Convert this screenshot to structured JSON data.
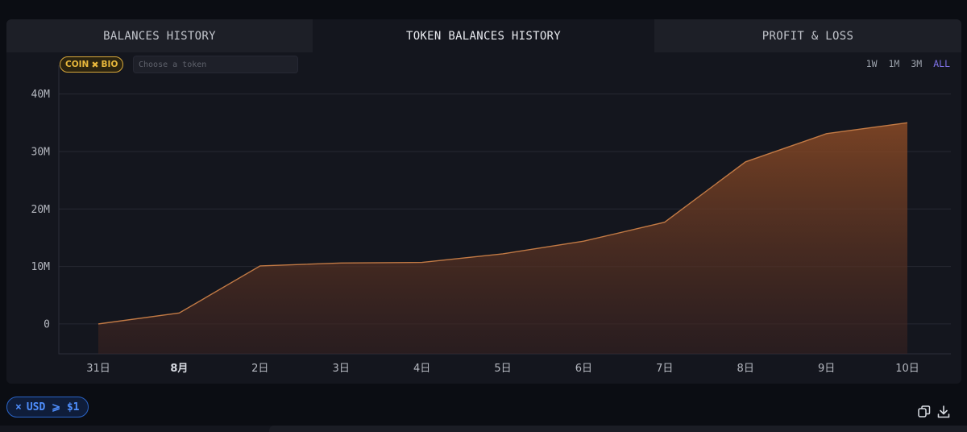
{
  "tabs": [
    {
      "label": "BALANCES HISTORY"
    },
    {
      "label": "TOKEN BALANCES HISTORY"
    },
    {
      "label": "PROFIT & LOSS"
    }
  ],
  "token_filter": {
    "chip_left": "COIN",
    "chip_right": "BIO",
    "chip_icon": "close-x-icon",
    "placeholder": "Choose a token"
  },
  "ranges": [
    "1W",
    "1M",
    "3M",
    "ALL"
  ],
  "active_range": "ALL",
  "chart_data": {
    "type": "area",
    "x": [
      "31日",
      "8月",
      "2日",
      "3日",
      "4日",
      "5日",
      "6日",
      "7日",
      "8日",
      "9日",
      "10日"
    ],
    "values": [
      0,
      1.9,
      10.1,
      10.6,
      10.7,
      12.2,
      14.4,
      17.7,
      28.2,
      33.1,
      35.0
    ],
    "unit": "M",
    "y_ticks": [
      {
        "v": 0,
        "label": "0"
      },
      {
        "v": 10,
        "label": "10M"
      },
      {
        "v": 20,
        "label": "20M"
      },
      {
        "v": 30,
        "label": "30M"
      },
      {
        "v": 40,
        "label": "40M"
      }
    ],
    "ylim": [
      -5.2,
      45
    ],
    "bold_x_labels": [
      "8月"
    ],
    "grid": true,
    "line_color": "#c27a45",
    "fill_color": "#8a4a25"
  },
  "footer": {
    "filter_x": "×",
    "filter_label": "USD ⩾ $1"
  },
  "icons": {
    "copy": "copy-icon",
    "download": "download-icon"
  }
}
